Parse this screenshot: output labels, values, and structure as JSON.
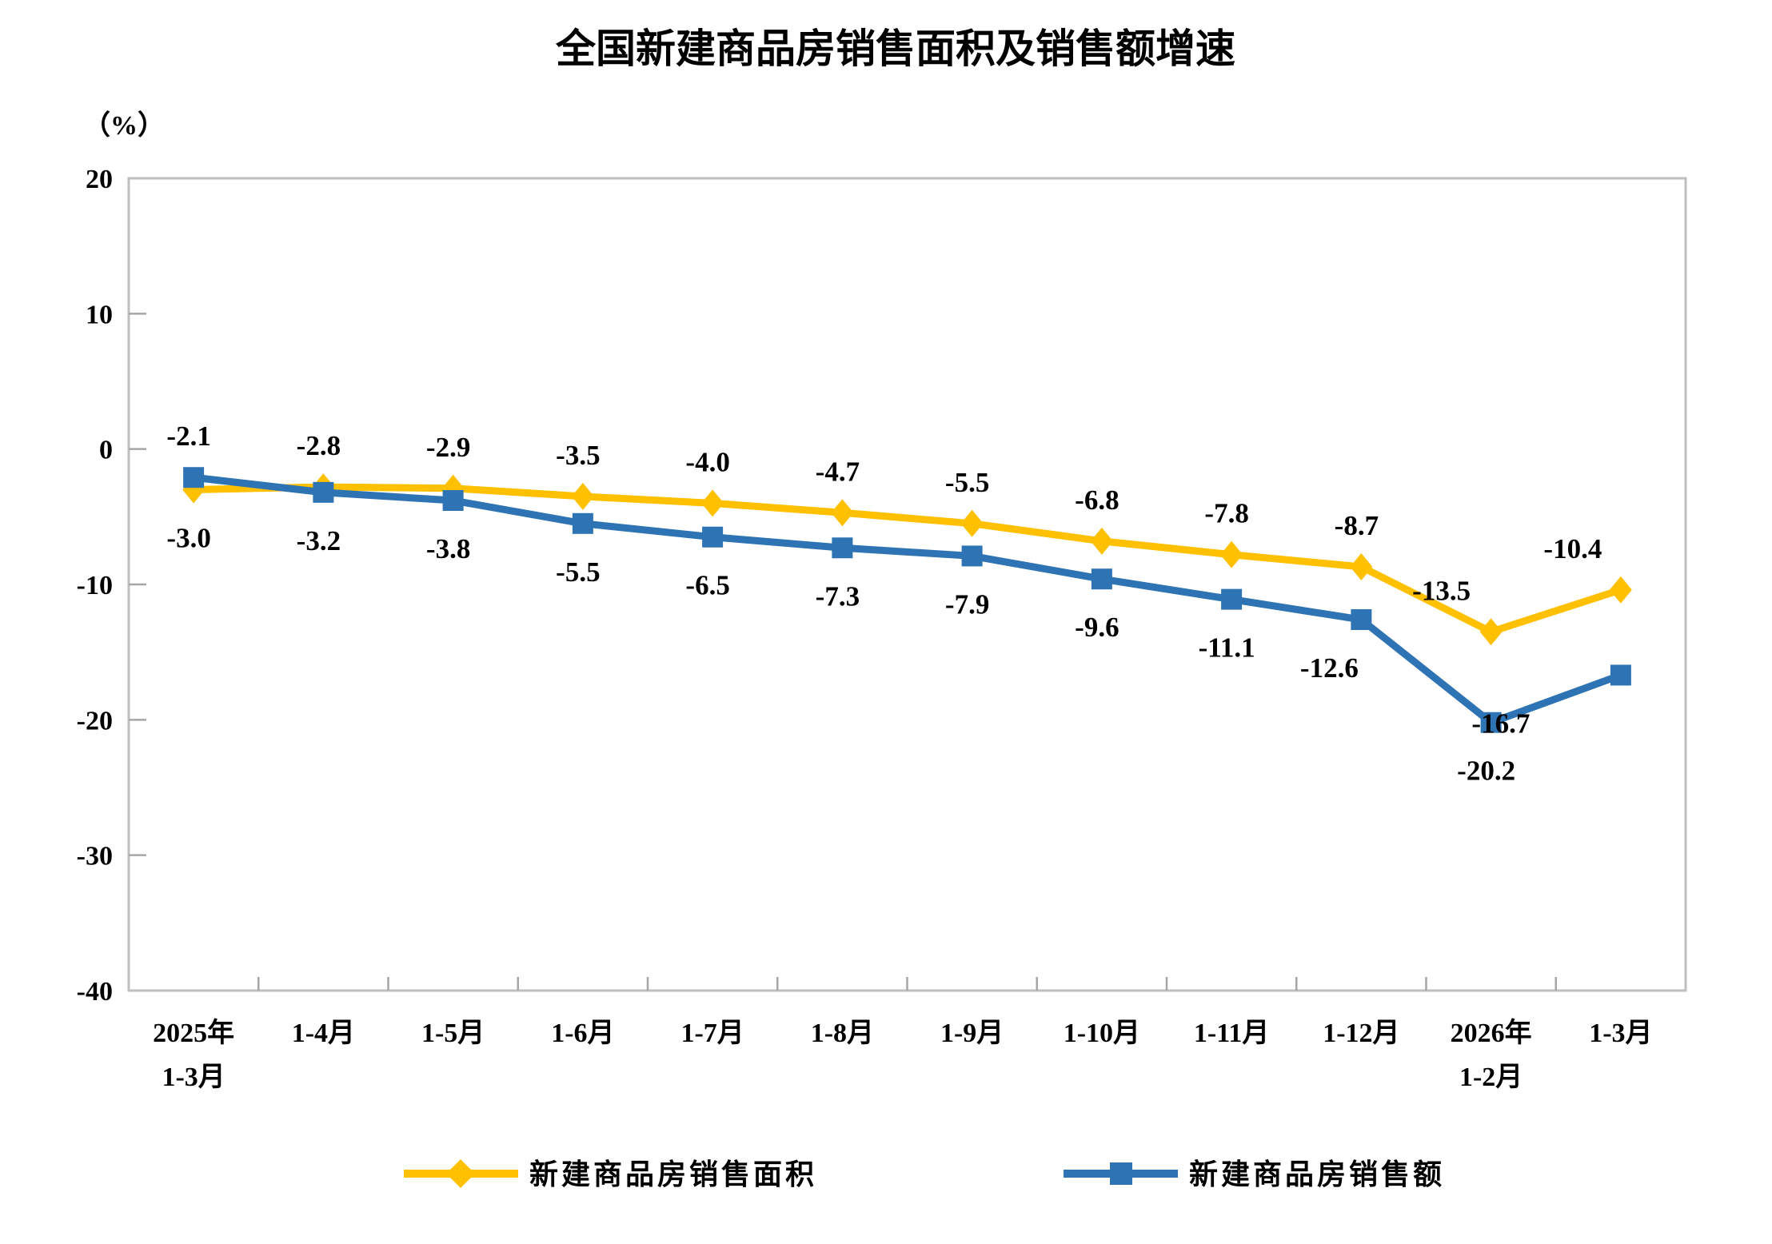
{
  "title": "全国新建商品房销售面积及销售额增速",
  "y_axis_unit_label": "（%）",
  "legend": {
    "items": [
      {
        "label": "新建商品房销售面积",
        "marker": "diamond-icon",
        "color": "#FFC000"
      },
      {
        "label": "新建商品房销售额",
        "marker": "square-icon",
        "color": "#2E74B5"
      }
    ]
  },
  "chart_data": {
    "type": "line",
    "title": "全国新建商品房销售面积及销售额增速",
    "ylabel": "（%）",
    "xlabel": "",
    "ylim": [
      -40,
      20
    ],
    "y_ticks": [
      20,
      10,
      0,
      -10,
      -20,
      -30,
      -40
    ],
    "grid": false,
    "legend_position": "bottom",
    "categories": [
      [
        "2025年",
        "1-3月"
      ],
      [
        "1-4月"
      ],
      [
        "1-5月"
      ],
      [
        "1-6月"
      ],
      [
        "1-7月"
      ],
      [
        "1-8月"
      ],
      [
        "1-9月"
      ],
      [
        "1-10月"
      ],
      [
        "1-11月"
      ],
      [
        "1-12月"
      ],
      [
        "2026年",
        "1-2月"
      ],
      [
        "1-3月"
      ]
    ],
    "series": [
      {
        "name": "新建商品房销售面积",
        "color": "#FFC000",
        "marker": "diamond",
        "values": [
          -3.0,
          -2.8,
          -2.9,
          -3.5,
          -4.0,
          -4.7,
          -5.5,
          -6.8,
          -7.8,
          -8.7,
          -13.5,
          -10.4
        ]
      },
      {
        "name": "新建商品房销售额",
        "color": "#2E74B5",
        "marker": "square",
        "values": [
          -2.1,
          -3.2,
          -3.8,
          -5.5,
          -6.5,
          -7.3,
          -7.9,
          -9.6,
          -11.1,
          -12.6,
          -20.2,
          -16.7
        ]
      }
    ]
  },
  "colors": {
    "axis_border": "#BFBFBF",
    "tick": "#A6A6A6",
    "label_text": "#000000"
  }
}
